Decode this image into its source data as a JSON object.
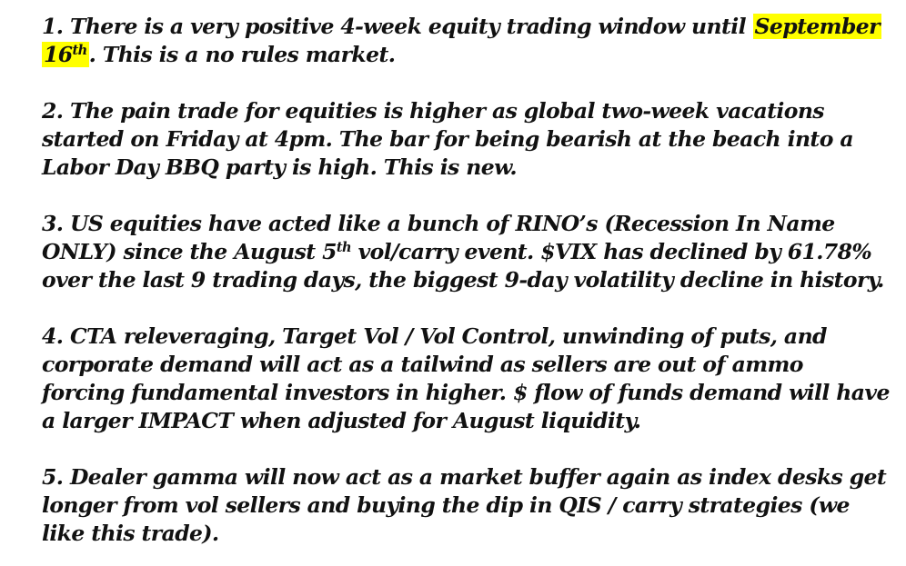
{
  "colors": {
    "text": "#111111",
    "highlight": "#ffff00",
    "background": "#ffffff"
  },
  "points": [
    {
      "num": "1.",
      "t1": "There is a very positive 4-week equity trading window until ",
      "hl1": "September",
      "hl2": "16",
      "hl_sup": "th",
      "t2": ". This is a no rules market."
    },
    {
      "num": "2.",
      "t1": "The pain trade for equities is higher as global two-week vacations started on Friday at 4pm. The bar for being bearish at the beach into a Labor Day BBQ party is high. This is new."
    },
    {
      "num": "3.",
      "t1": "US equities have acted like a bunch of RINO’s (Recession In Name ONLY) since the August 5",
      "sup": "th",
      "t2": " vol/carry event. $VIX has declined by 61.78% over the last 9 trading days, the biggest 9-day volatility decline in history."
    },
    {
      "num": "4.",
      "t1": "CTA releveraging, Target Vol / Vol Control, unwinding of puts, and corporate demand will act as a tailwind as sellers are out of ammo forcing fundamental investors in higher. $ flow of funds demand will have a larger IMPACT when adjusted for August liquidity."
    },
    {
      "num": "5.",
      "t1": "Dealer gamma will now act as a market buffer again as index desks get longer from vol sellers and buying the dip in QIS / carry strategies (we like this trade)."
    }
  ]
}
